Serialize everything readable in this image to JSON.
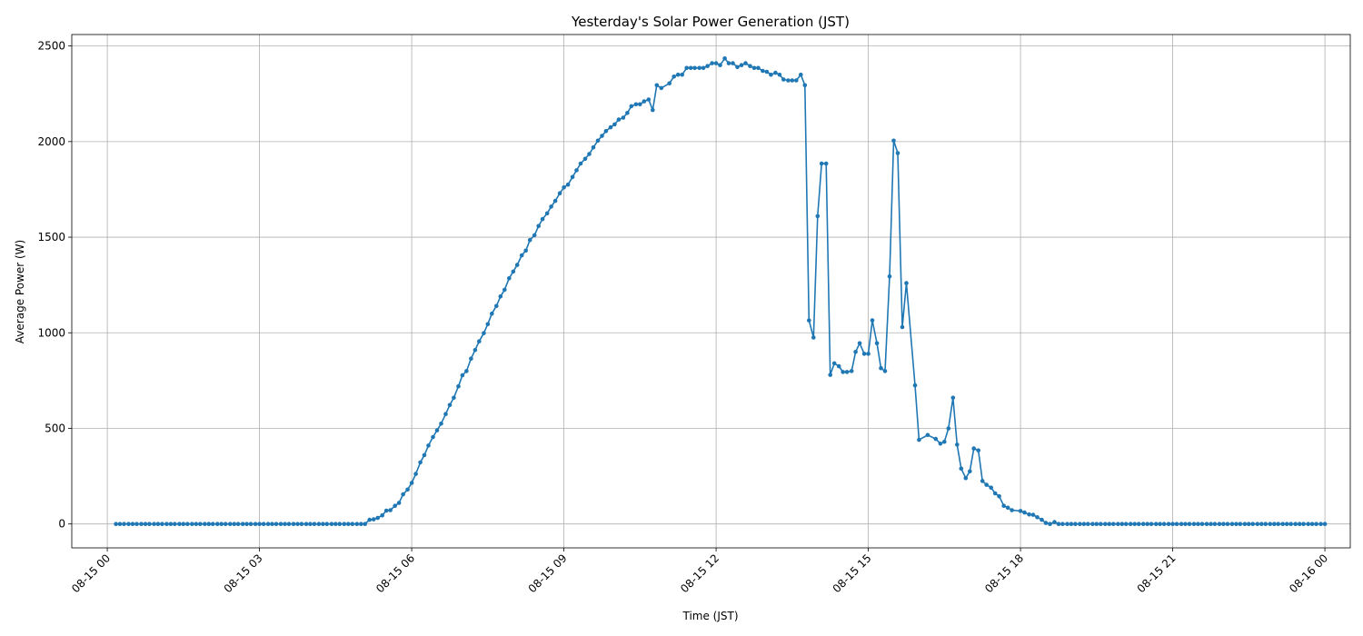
{
  "chart_data": {
    "type": "line",
    "title": "Yesterday's Solar Power Generation (JST)",
    "xlabel": "Time (JST)",
    "ylabel": "Average Power (W)",
    "x_unit": "hours since 08-15 00:00 JST",
    "xlim": [
      -0.7,
      24.5
    ],
    "ylim": [
      -125,
      2560
    ],
    "grid": true,
    "line_color": "#1f77b4",
    "xticks": [
      {
        "value": 0,
        "label": "08-15 00"
      },
      {
        "value": 3,
        "label": "08-15 03"
      },
      {
        "value": 6,
        "label": "08-15 06"
      },
      {
        "value": 9,
        "label": "08-15 09"
      },
      {
        "value": 12,
        "label": "08-15 12"
      },
      {
        "value": 15,
        "label": "08-15 15"
      },
      {
        "value": 18,
        "label": "08-15 18"
      },
      {
        "value": 21,
        "label": "08-15 21"
      },
      {
        "value": 24,
        "label": "08-16 00"
      }
    ],
    "yticks": [
      {
        "value": 0,
        "label": "0"
      },
      {
        "value": 500,
        "label": "500"
      },
      {
        "value": 1000,
        "label": "1000"
      },
      {
        "value": 1500,
        "label": "1500"
      },
      {
        "value": 2000,
        "label": "2000"
      },
      {
        "value": 2500,
        "label": "2500"
      }
    ],
    "series": [
      {
        "name": "Average Power",
        "points": [
          [
            0.17,
            0
          ],
          [
            0.25,
            0
          ],
          [
            0.33,
            0
          ],
          [
            0.42,
            0
          ],
          [
            0.5,
            0
          ],
          [
            0.58,
            0
          ],
          [
            0.67,
            0
          ],
          [
            0.75,
            0
          ],
          [
            0.83,
            0
          ],
          [
            0.92,
            0
          ],
          [
            1.0,
            0
          ],
          [
            1.08,
            0
          ],
          [
            1.17,
            0
          ],
          [
            1.25,
            0
          ],
          [
            1.33,
            0
          ],
          [
            1.42,
            0
          ],
          [
            1.5,
            0
          ],
          [
            1.58,
            0
          ],
          [
            1.67,
            0
          ],
          [
            1.75,
            0
          ],
          [
            1.83,
            0
          ],
          [
            1.92,
            0
          ],
          [
            2.0,
            0
          ],
          [
            2.08,
            0
          ],
          [
            2.17,
            0
          ],
          [
            2.25,
            0
          ],
          [
            2.33,
            0
          ],
          [
            2.42,
            0
          ],
          [
            2.5,
            0
          ],
          [
            2.58,
            0
          ],
          [
            2.67,
            0
          ],
          [
            2.75,
            0
          ],
          [
            2.83,
            0
          ],
          [
            2.92,
            0
          ],
          [
            3.0,
            0
          ],
          [
            3.08,
            0
          ],
          [
            3.17,
            0
          ],
          [
            3.25,
            0
          ],
          [
            3.33,
            0
          ],
          [
            3.42,
            0
          ],
          [
            3.5,
            0
          ],
          [
            3.58,
            0
          ],
          [
            3.67,
            0
          ],
          [
            3.75,
            0
          ],
          [
            3.83,
            0
          ],
          [
            3.92,
            0
          ],
          [
            4.0,
            0
          ],
          [
            4.08,
            0
          ],
          [
            4.17,
            0
          ],
          [
            4.25,
            0
          ],
          [
            4.33,
            0
          ],
          [
            4.42,
            0
          ],
          [
            4.5,
            0
          ],
          [
            4.58,
            0
          ],
          [
            4.67,
            0
          ],
          [
            4.75,
            0
          ],
          [
            4.83,
            0
          ],
          [
            4.92,
            0
          ],
          [
            5.0,
            0
          ],
          [
            5.08,
            0
          ],
          [
            5.17,
            22
          ],
          [
            5.25,
            24
          ],
          [
            5.33,
            32
          ],
          [
            5.42,
            45
          ],
          [
            5.5,
            70
          ],
          [
            5.58,
            72
          ],
          [
            5.67,
            95
          ],
          [
            5.75,
            110
          ],
          [
            5.83,
            155
          ],
          [
            5.92,
            180
          ],
          [
            6.0,
            215
          ],
          [
            6.08,
            262
          ],
          [
            6.17,
            322
          ],
          [
            6.25,
            360
          ],
          [
            6.33,
            410
          ],
          [
            6.42,
            455
          ],
          [
            6.5,
            490
          ],
          [
            6.58,
            525
          ],
          [
            6.67,
            575
          ],
          [
            6.75,
            622
          ],
          [
            6.83,
            660
          ],
          [
            6.92,
            720
          ],
          [
            7.0,
            778
          ],
          [
            7.08,
            800
          ],
          [
            7.17,
            865
          ],
          [
            7.25,
            910
          ],
          [
            7.33,
            955
          ],
          [
            7.42,
            998
          ],
          [
            7.5,
            1045
          ],
          [
            7.58,
            1100
          ],
          [
            7.67,
            1140
          ],
          [
            7.75,
            1190
          ],
          [
            7.83,
            1225
          ],
          [
            7.92,
            1285
          ],
          [
            8.0,
            1320
          ],
          [
            8.08,
            1355
          ],
          [
            8.17,
            1405
          ],
          [
            8.25,
            1430
          ],
          [
            8.33,
            1485
          ],
          [
            8.42,
            1510
          ],
          [
            8.5,
            1558
          ],
          [
            8.58,
            1595
          ],
          [
            8.67,
            1625
          ],
          [
            8.75,
            1660
          ],
          [
            8.83,
            1690
          ],
          [
            8.92,
            1730
          ],
          [
            9.0,
            1760
          ],
          [
            9.08,
            1775
          ],
          [
            9.17,
            1815
          ],
          [
            9.25,
            1850
          ],
          [
            9.33,
            1885
          ],
          [
            9.42,
            1910
          ],
          [
            9.5,
            1935
          ],
          [
            9.58,
            1970
          ],
          [
            9.67,
            2005
          ],
          [
            9.75,
            2030
          ],
          [
            9.83,
            2055
          ],
          [
            9.92,
            2075
          ],
          [
            10.0,
            2090
          ],
          [
            10.08,
            2115
          ],
          [
            10.17,
            2125
          ],
          [
            10.25,
            2150
          ],
          [
            10.33,
            2185
          ],
          [
            10.42,
            2195
          ],
          [
            10.5,
            2195
          ],
          [
            10.58,
            2210
          ],
          [
            10.67,
            2220
          ],
          [
            10.75,
            2165
          ],
          [
            10.83,
            2295
          ],
          [
            10.92,
            2280
          ],
          [
            11.08,
            2305
          ],
          [
            11.17,
            2340
          ],
          [
            11.25,
            2350
          ],
          [
            11.33,
            2350
          ],
          [
            11.42,
            2385
          ],
          [
            11.5,
            2385
          ],
          [
            11.58,
            2385
          ],
          [
            11.67,
            2385
          ],
          [
            11.75,
            2385
          ],
          [
            11.83,
            2395
          ],
          [
            11.92,
            2410
          ],
          [
            12.0,
            2410
          ],
          [
            12.08,
            2400
          ],
          [
            12.17,
            2435
          ],
          [
            12.25,
            2410
          ],
          [
            12.33,
            2410
          ],
          [
            12.42,
            2390
          ],
          [
            12.5,
            2400
          ],
          [
            12.58,
            2410
          ],
          [
            12.67,
            2395
          ],
          [
            12.75,
            2385
          ],
          [
            12.83,
            2385
          ],
          [
            12.92,
            2370
          ],
          [
            13.0,
            2365
          ],
          [
            13.08,
            2350
          ],
          [
            13.17,
            2360
          ],
          [
            13.25,
            2350
          ],
          [
            13.33,
            2325
          ],
          [
            13.42,
            2320
          ],
          [
            13.5,
            2320
          ],
          [
            13.58,
            2320
          ],
          [
            13.67,
            2350
          ],
          [
            13.75,
            2295
          ],
          [
            13.83,
            1065
          ],
          [
            13.92,
            975
          ],
          [
            14.0,
            1610
          ],
          [
            14.08,
            1885
          ],
          [
            14.17,
            1885
          ],
          [
            14.25,
            780
          ],
          [
            14.33,
            840
          ],
          [
            14.42,
            825
          ],
          [
            14.5,
            795
          ],
          [
            14.58,
            795
          ],
          [
            14.67,
            800
          ],
          [
            14.75,
            900
          ],
          [
            14.83,
            945
          ],
          [
            14.92,
            890
          ],
          [
            15.0,
            890
          ],
          [
            15.08,
            1065
          ],
          [
            15.17,
            945
          ],
          [
            15.25,
            815
          ],
          [
            15.33,
            800
          ],
          [
            15.42,
            1295
          ],
          [
            15.5,
            2005
          ],
          [
            15.58,
            1940
          ],
          [
            15.67,
            1030
          ],
          [
            15.75,
            1260
          ],
          [
            15.92,
            725
          ],
          [
            16.0,
            440
          ],
          [
            16.17,
            465
          ],
          [
            16.33,
            445
          ],
          [
            16.42,
            420
          ],
          [
            16.5,
            430
          ],
          [
            16.58,
            500
          ],
          [
            16.67,
            660
          ],
          [
            16.75,
            415
          ],
          [
            16.83,
            290
          ],
          [
            16.92,
            240
          ],
          [
            17.0,
            275
          ],
          [
            17.08,
            395
          ],
          [
            17.17,
            385
          ],
          [
            17.25,
            225
          ],
          [
            17.33,
            205
          ],
          [
            17.42,
            190
          ],
          [
            17.5,
            160
          ],
          [
            17.58,
            145
          ],
          [
            17.67,
            95
          ],
          [
            17.75,
            85
          ],
          [
            17.83,
            72
          ],
          [
            18.0,
            68
          ],
          [
            18.08,
            60
          ],
          [
            18.17,
            50
          ],
          [
            18.25,
            48
          ],
          [
            18.33,
            35
          ],
          [
            18.42,
            22
          ],
          [
            18.5,
            5
          ],
          [
            18.58,
            0
          ],
          [
            18.67,
            10
          ],
          [
            18.75,
            0
          ],
          [
            18.83,
            0
          ],
          [
            18.92,
            0
          ],
          [
            19.0,
            0
          ],
          [
            19.08,
            0
          ],
          [
            19.17,
            0
          ],
          [
            19.25,
            0
          ],
          [
            19.33,
            0
          ],
          [
            19.42,
            0
          ],
          [
            19.5,
            0
          ],
          [
            19.58,
            0
          ],
          [
            19.67,
            0
          ],
          [
            19.75,
            0
          ],
          [
            19.83,
            0
          ],
          [
            19.92,
            0
          ],
          [
            20.0,
            0
          ],
          [
            20.08,
            0
          ],
          [
            20.17,
            0
          ],
          [
            20.25,
            0
          ],
          [
            20.33,
            0
          ],
          [
            20.42,
            0
          ],
          [
            20.5,
            0
          ],
          [
            20.58,
            0
          ],
          [
            20.67,
            0
          ],
          [
            20.75,
            0
          ],
          [
            20.83,
            0
          ],
          [
            20.92,
            0
          ],
          [
            21.0,
            0
          ],
          [
            21.08,
            0
          ],
          [
            21.17,
            0
          ],
          [
            21.25,
            0
          ],
          [
            21.33,
            0
          ],
          [
            21.42,
            0
          ],
          [
            21.5,
            0
          ],
          [
            21.58,
            0
          ],
          [
            21.67,
            0
          ],
          [
            21.75,
            0
          ],
          [
            21.83,
            0
          ],
          [
            21.92,
            0
          ],
          [
            22.0,
            0
          ],
          [
            22.08,
            0
          ],
          [
            22.17,
            0
          ],
          [
            22.25,
            0
          ],
          [
            22.33,
            0
          ],
          [
            22.42,
            0
          ],
          [
            22.5,
            0
          ],
          [
            22.58,
            0
          ],
          [
            22.67,
            0
          ],
          [
            22.75,
            0
          ],
          [
            22.83,
            0
          ],
          [
            22.92,
            0
          ],
          [
            23.0,
            0
          ],
          [
            23.08,
            0
          ],
          [
            23.17,
            0
          ],
          [
            23.25,
            0
          ],
          [
            23.33,
            0
          ],
          [
            23.42,
            0
          ],
          [
            23.5,
            0
          ],
          [
            23.58,
            0
          ],
          [
            23.67,
            0
          ],
          [
            23.75,
            0
          ],
          [
            23.83,
            0
          ],
          [
            23.92,
            0
          ],
          [
            24.0,
            0
          ]
        ]
      }
    ]
  }
}
